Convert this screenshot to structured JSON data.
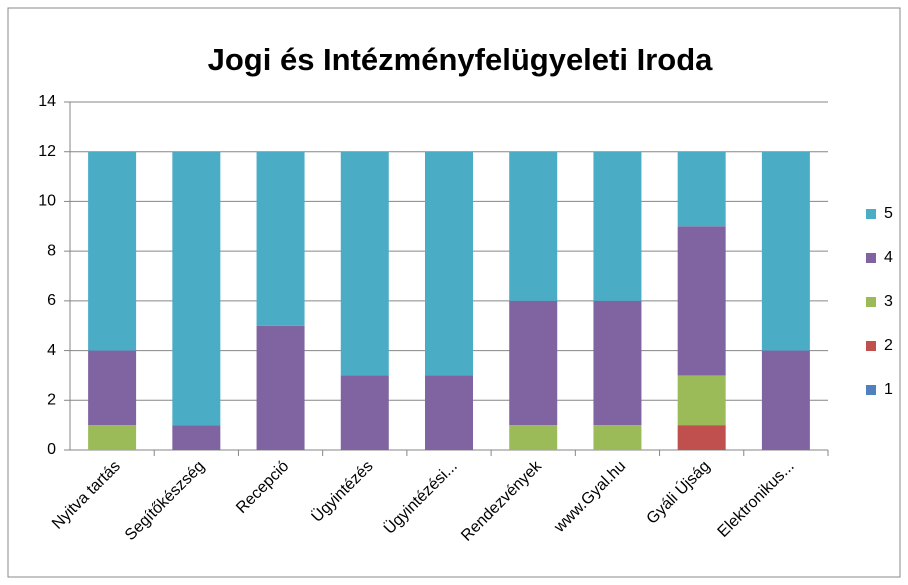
{
  "chart_data": {
    "type": "stacked_bar",
    "title": "Jogi és Intézményfelügyeleti  Iroda",
    "categories": [
      "Nyitva tartás",
      "Segítőkészség",
      "Recepció",
      "Ügyintézés",
      "Ügyintézési...",
      "Rendezvények",
      "www.Gyal.hu",
      "Gyáli Újság",
      "Elektronikus..."
    ],
    "series": [
      {
        "name": "1",
        "color": "#4f81bd",
        "values": [
          0,
          0,
          0,
          0,
          0,
          0,
          0,
          0,
          0
        ]
      },
      {
        "name": "2",
        "color": "#c0504d",
        "values": [
          0,
          0,
          0,
          0,
          0,
          0,
          0,
          1,
          0
        ]
      },
      {
        "name": "3",
        "color": "#9bbb59",
        "values": [
          1,
          0,
          0,
          0,
          0,
          1,
          1,
          2,
          0
        ]
      },
      {
        "name": "4",
        "color": "#8064a2",
        "values": [
          3,
          1,
          5,
          3,
          3,
          5,
          5,
          6,
          4
        ]
      },
      {
        "name": "5",
        "color": "#4bacc6",
        "values": [
          8,
          11,
          7,
          9,
          9,
          6,
          6,
          3,
          8
        ]
      }
    ],
    "ylim": [
      0,
      14
    ],
    "yticks": [
      0,
      2,
      4,
      6,
      8,
      10,
      12,
      14
    ],
    "grid": true,
    "legend": "right"
  }
}
